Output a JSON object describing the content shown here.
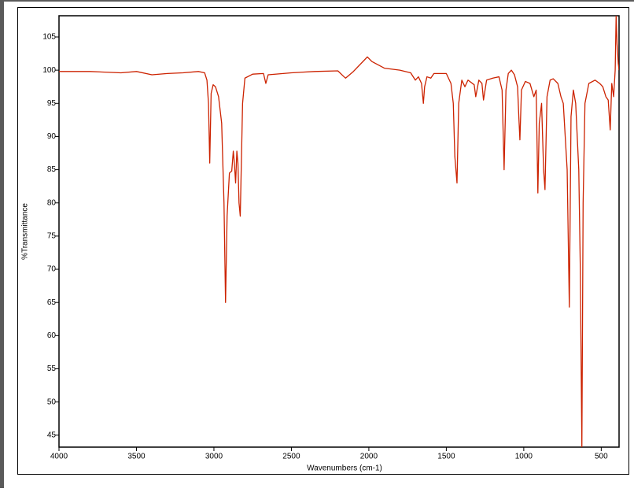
{
  "chart_data": {
    "type": "line",
    "xlabel": "Wavenumbers (cm-1)",
    "ylabel": "%Transmittance",
    "color": "#cc2200",
    "x": [
      4000,
      3800,
      3600,
      3500,
      3400,
      3300,
      3200,
      3100,
      3060,
      3045,
      3035,
      3027,
      3018,
      3005,
      2990,
      2970,
      2950,
      2935,
      2925,
      2915,
      2900,
      2885,
      2875,
      2868,
      2860,
      2852,
      2845,
      2838,
      2830,
      2815,
      2800,
      2750,
      2680,
      2665,
      2650,
      2500,
      2350,
      2200,
      2160,
      2150,
      2100,
      2030,
      2010,
      1980,
      1900,
      1800,
      1730,
      1700,
      1680,
      1660,
      1648,
      1640,
      1625,
      1600,
      1580,
      1500,
      1470,
      1455,
      1445,
      1438,
      1431,
      1420,
      1400,
      1380,
      1360,
      1320,
      1310,
      1290,
      1270,
      1260,
      1240,
      1200,
      1160,
      1140,
      1127,
      1115,
      1100,
      1080,
      1060,
      1040,
      1032,
      1025,
      1015,
      990,
      960,
      935,
      920,
      909,
      900,
      885,
      872,
      863,
      850,
      830,
      810,
      780,
      760,
      745,
      720,
      706,
      695,
      680,
      665,
      655,
      645,
      635,
      625,
      617,
      605,
      580,
      540,
      510,
      490,
      470,
      455,
      442,
      432,
      420,
      410,
      404,
      398,
      390,
      385
    ],
    "values": [
      99.8,
      99.8,
      99.6,
      99.8,
      99.3,
      99.5,
      99.6,
      99.8,
      99.6,
      98.5,
      95,
      86,
      96.5,
      97.8,
      97.5,
      96,
      92,
      80,
      65,
      78,
      84.5,
      84.8,
      87.8,
      86,
      83,
      87.8,
      86,
      80,
      78,
      95,
      98.8,
      99.4,
      99.5,
      98,
      99.3,
      99.6,
      99.8,
      99.9,
      99,
      98.8,
      99.8,
      101.5,
      102,
      101.3,
      100.3,
      100,
      99.6,
      98.5,
      99,
      98,
      95,
      97.5,
      99,
      98.8,
      99.5,
      99.5,
      98,
      95,
      87,
      85,
      83,
      95,
      98.5,
      97.5,
      98.5,
      97.8,
      96,
      98.5,
      98,
      95.5,
      98.5,
      98.8,
      99,
      97,
      85,
      97,
      99.5,
      100,
      99.3,
      97.5,
      93,
      89.5,
      97,
      98.3,
      98,
      96,
      97,
      81.5,
      92,
      95,
      85,
      82,
      96,
      98.5,
      98.7,
      98,
      96,
      95,
      85,
      64.3,
      93,
      97,
      95,
      90,
      85,
      70,
      43.2,
      80,
      95,
      98,
      98.5,
      98,
      97.5,
      96,
      95.5,
      91,
      98,
      96,
      100,
      108.2,
      104,
      101,
      100
    ],
    "xlim": [
      4000,
      385
    ],
    "ylim": [
      43.2,
      108.2
    ],
    "xticks": [
      4000,
      3500,
      3000,
      2500,
      2000,
      1500,
      1000,
      500
    ],
    "yticks": [
      45,
      50,
      55,
      60,
      65,
      70,
      75,
      80,
      85,
      90,
      95,
      100,
      105
    ]
  }
}
